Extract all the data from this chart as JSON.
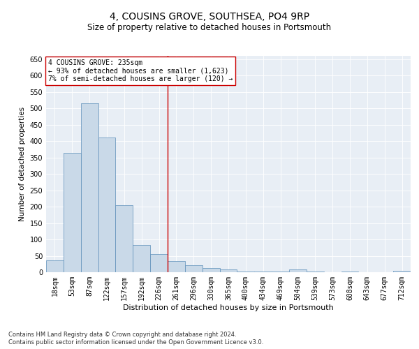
{
  "title": "4, COUSINS GROVE, SOUTHSEA, PO4 9RP",
  "subtitle": "Size of property relative to detached houses in Portsmouth",
  "xlabel": "Distribution of detached houses by size in Portsmouth",
  "ylabel": "Number of detached properties",
  "bar_labels": [
    "18sqm",
    "53sqm",
    "87sqm",
    "122sqm",
    "157sqm",
    "192sqm",
    "226sqm",
    "261sqm",
    "296sqm",
    "330sqm",
    "365sqm",
    "400sqm",
    "434sqm",
    "469sqm",
    "504sqm",
    "539sqm",
    "573sqm",
    "608sqm",
    "643sqm",
    "677sqm",
    "712sqm"
  ],
  "bar_values": [
    37,
    365,
    515,
    410,
    205,
    83,
    55,
    35,
    22,
    12,
    8,
    2,
    2,
    2,
    9,
    2,
    0,
    3,
    0,
    0,
    4
  ],
  "bar_color": "#c9d9e8",
  "bar_edgecolor": "#5b8db8",
  "vline_x": 6.5,
  "vline_color": "#cc0000",
  "annotation_text": "4 COUSINS GROVE: 235sqm\n← 93% of detached houses are smaller (1,623)\n7% of semi-detached houses are larger (120) →",
  "annotation_box_color": "#ffffff",
  "annotation_box_edgecolor": "#cc0000",
  "ylim": [
    0,
    660
  ],
  "yticks": [
    0,
    50,
    100,
    150,
    200,
    250,
    300,
    350,
    400,
    450,
    500,
    550,
    600,
    650
  ],
  "background_color": "#e8eef5",
  "footer_line1": "Contains HM Land Registry data © Crown copyright and database right 2024.",
  "footer_line2": "Contains public sector information licensed under the Open Government Licence v3.0.",
  "title_fontsize": 10,
  "subtitle_fontsize": 8.5,
  "xlabel_fontsize": 8,
  "ylabel_fontsize": 7.5,
  "tick_fontsize": 7,
  "footer_fontsize": 6,
  "annotation_fontsize": 7
}
